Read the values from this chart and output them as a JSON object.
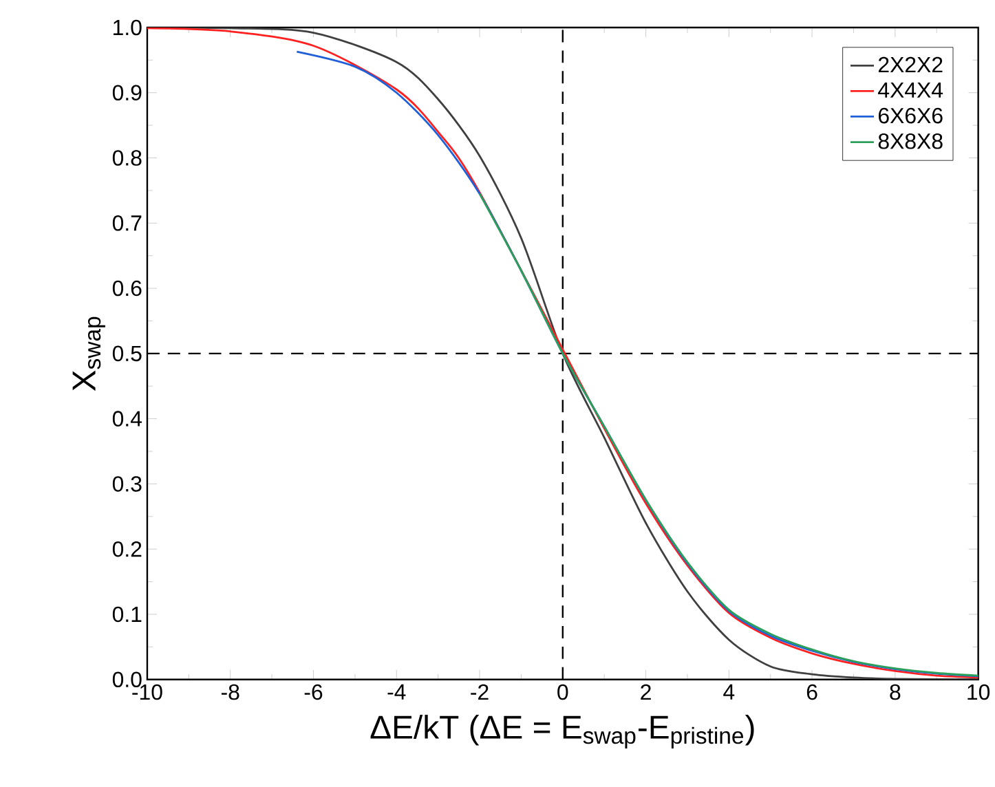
{
  "chart_data": {
    "type": "line",
    "xlabel": "ΔE/kT (ΔE = E$_{swap}$-E$_{pristine}$)",
    "ylabel": "X$_{swap}$",
    "xlim": [
      -10,
      10
    ],
    "ylim": [
      0,
      1
    ],
    "xticks": [
      -10,
      -8,
      -6,
      -4,
      -2,
      0,
      2,
      4,
      6,
      8,
      10
    ],
    "yticks": [
      {
        "value": 0,
        "label": "0.0"
      },
      {
        "value": 0.1,
        "label": "0.1"
      },
      {
        "value": 0.2,
        "label": "0.2"
      },
      {
        "value": 0.3,
        "label": "0.3"
      },
      {
        "value": 0.4,
        "label": "0.4"
      },
      {
        "value": 0.5,
        "label": "0.5"
      },
      {
        "value": 0.6,
        "label": "0.6"
      },
      {
        "value": 0.7,
        "label": "0.7"
      },
      {
        "value": 0.8,
        "label": "0.8"
      },
      {
        "value": 0.9,
        "label": "0.9"
      },
      {
        "value": 1.0,
        "label": "1.0"
      }
    ],
    "legend": "top right",
    "ref_lines": [
      {
        "axis": "x",
        "value": 0,
        "color": "#000000",
        "line_style": "dashed"
      },
      {
        "axis": "y",
        "value": 0.5,
        "color": "#000000",
        "line_style": "dashed"
      }
    ],
    "series": [
      {
        "name": "2X2X2",
        "color": "#404040",
        "x": [
          -10,
          -8,
          -6,
          -4,
          -3,
          -2,
          -1,
          0,
          1,
          2,
          3,
          4,
          5,
          6,
          7,
          8,
          10
        ],
        "values": [
          1.0,
          0.999,
          0.992,
          0.947,
          0.89,
          0.803,
          0.677,
          0.5,
          0.371,
          0.24,
          0.135,
          0.061,
          0.02,
          0.008,
          0.003,
          0.001,
          0.0
        ]
      },
      {
        "name": "4X4X4",
        "color": "#ff2020",
        "x": [
          -10,
          -8,
          -6,
          -4,
          -3,
          -2,
          -1,
          0,
          1,
          2,
          3,
          4,
          5,
          6,
          7,
          8,
          9,
          10
        ],
        "values": [
          0.999,
          0.994,
          0.972,
          0.905,
          0.84,
          0.747,
          null,
          null,
          0.385,
          0.27,
          0.175,
          0.102,
          0.064,
          0.04,
          0.024,
          0.013,
          0.006,
          0.003
        ]
      },
      {
        "name": "6X6X6",
        "color": "#1f5fd8",
        "x": [
          -6.4,
          -5,
          -4,
          -3,
          -2,
          -1,
          0,
          1,
          2,
          3,
          4,
          5,
          6,
          7,
          8,
          9,
          10
        ],
        "values": [
          0.963,
          0.94,
          0.9,
          0.835,
          0.745,
          0.627,
          0.5,
          0.388,
          0.275,
          0.178,
          0.105,
          0.067,
          0.044,
          0.027,
          0.016,
          0.009,
          0.005
        ]
      },
      {
        "name": "8X8X8",
        "color": "#2ca05a",
        "x": [
          -2,
          -1,
          0,
          1,
          2,
          3,
          4,
          5,
          6,
          7,
          8,
          9,
          10
        ],
        "values": [
          0.745,
          0.627,
          0.5,
          0.388,
          0.276,
          0.18,
          0.107,
          0.07,
          0.046,
          0.028,
          0.017,
          0.01,
          0.006
        ]
      }
    ]
  }
}
